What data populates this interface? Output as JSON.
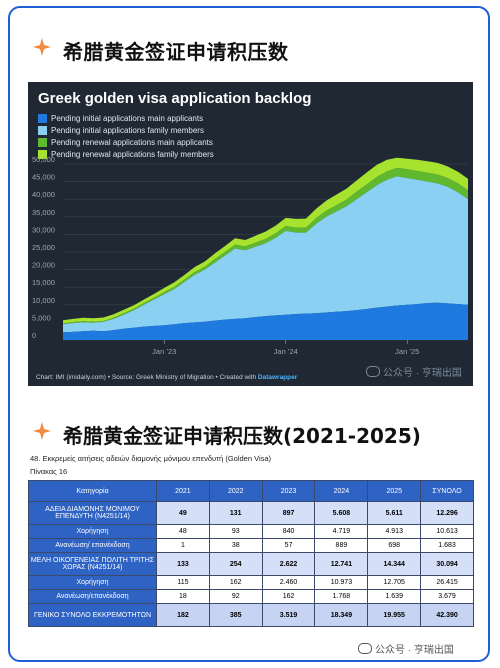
{
  "section1": {
    "title": "希腊黄金签证申请积压数"
  },
  "section2": {
    "title": "希腊黄金签证申请积压数(2021-2025)"
  },
  "chart_data": {
    "type": "area",
    "title": "Greek golden visa application backlog",
    "series": [
      {
        "name": "Pending initial applications main applicants",
        "color": "#1f7ae0"
      },
      {
        "name": "Pending initial applications family members",
        "color": "#8ad0f3"
      },
      {
        "name": "Pending renewal applications main applicants",
        "color": "#5fb82d"
      },
      {
        "name": "Pending renewal applications family members",
        "color": "#a6e22e"
      }
    ],
    "y_ticks": [
      "50,000",
      "45,000",
      "40,000",
      "35,000",
      "30,000",
      "25,000",
      "20,000",
      "15,000",
      "10,000",
      "5,000",
      "0"
    ],
    "ylim": [
      0,
      50000
    ],
    "x_ticks": [
      "Jan ’23",
      "Jan ’24",
      "Jan ’25"
    ],
    "x_months": [
      0,
      1,
      2,
      3,
      4,
      5,
      6,
      7,
      8,
      9,
      10,
      11,
      12,
      13,
      14,
      15,
      16,
      17,
      18,
      19,
      20,
      21,
      22,
      23,
      24,
      25,
      26,
      27,
      28,
      29,
      30,
      31,
      32,
      33,
      34,
      35,
      36,
      37,
      38,
      39,
      40
    ],
    "stack_main": [
      2200,
      2300,
      2500,
      2600,
      2500,
      2800,
      3200,
      3500,
      3800,
      4000,
      4200,
      4500,
      4800,
      5000,
      5200,
      5500,
      5800,
      6000,
      6200,
      6500,
      6800,
      7000,
      7200,
      7400,
      7500,
      7600,
      7800,
      8000,
      8200,
      8500,
      8800,
      9200,
      9500,
      9800,
      10000,
      10200,
      10500,
      10600,
      10400,
      10200,
      10000
    ],
    "stack_family": [
      4500,
      4800,
      5000,
      4900,
      5200,
      6000,
      7200,
      8500,
      10000,
      11500,
      13000,
      14500,
      16500,
      18500,
      20000,
      22000,
      24000,
      26000,
      25500,
      26500,
      27500,
      29000,
      31000,
      30500,
      30500,
      33000,
      35000,
      36500,
      38000,
      40000,
      42000,
      44000,
      45500,
      46500,
      46000,
      45500,
      45000,
      44500,
      43500,
      42000,
      40000
    ],
    "stack_renew_main": [
      4700,
      5100,
      5300,
      5200,
      5400,
      6300,
      7600,
      8900,
      10500,
      12000,
      13600,
      15100,
      17200,
      19300,
      20800,
      23000,
      25000,
      27100,
      26600,
      27600,
      28700,
      30300,
      32400,
      31900,
      31900,
      34600,
      36700,
      38300,
      39900,
      42100,
      44200,
      46300,
      47900,
      48900,
      48500,
      48000,
      47500,
      47000,
      46000,
      44500,
      42500
    ],
    "stack_renew_family": [
      5600,
      6000,
      6300,
      6200,
      6400,
      7300,
      8600,
      9900,
      11500,
      13100,
      14800,
      16400,
      18500,
      20700,
      22300,
      24600,
      26700,
      28900,
      28400,
      29600,
      30800,
      32500,
      34700,
      34400,
      34500,
      37300,
      39600,
      41300,
      43000,
      45300,
      47600,
      49800,
      51200,
      51800,
      51500,
      51200,
      50800,
      50300,
      49300,
      47800,
      45800
    ],
    "credits": {
      "text": "Chart: IMI (imidaily.com) • Source: Greek Ministry of Migration • Created with ",
      "tool": "Datawrapper"
    }
  },
  "watermark": "公众号 · 亨瑞出国",
  "table": {
    "caption": "48. Εκκρεμείς αιτήσεις αδειών διαμονής μόνιμου επενδυτή (Golden Visa)",
    "subcaption": "Πίνακας 16",
    "headers": [
      "Κατηγορία",
      "2021",
      "2022",
      "2023",
      "2024",
      "2025",
      "ΣΥΝΟΛΟ"
    ],
    "rows": [
      {
        "kind": "main",
        "cells": [
          "ΑΔΕΙΑ ΔΙΑΜΟΝΗΣ ΜΟΝΙΜΟΥ ΕΠΕΝΔΥΤΗ (Ν4251/14)",
          "49",
          "131",
          "897",
          "5.608",
          "5.611",
          "12.296"
        ]
      },
      {
        "kind": "sub",
        "cells": [
          "Χορήγηση",
          "48",
          "93",
          "840",
          "4.719",
          "4.913",
          "10.613"
        ]
      },
      {
        "kind": "sub",
        "cells": [
          "Ανανέωση/ επανέκδοση",
          "1",
          "38",
          "57",
          "889",
          "698",
          "1.683"
        ]
      },
      {
        "kind": "main",
        "cells": [
          "ΜΕΛΗ ΟΙΚΟΓΕΝΕΙΑΣ ΠΟΛΙΤΗ ΤΡΙΤΗΣ ΧΩΡΑΣ (Ν4251/14)",
          "133",
          "254",
          "2.622",
          "12.741",
          "14.344",
          "30.094"
        ]
      },
      {
        "kind": "sub",
        "cells": [
          "Χορήγηση",
          "115",
          "162",
          "2.460",
          "10.973",
          "12.705",
          "26.415"
        ]
      },
      {
        "kind": "sub",
        "cells": [
          "Ανανέωση/επανέκδοση",
          "18",
          "92",
          "162",
          "1.768",
          "1.639",
          "3.679"
        ]
      },
      {
        "kind": "total",
        "cells": [
          "ΓΕΝΙΚΟ ΣΥΝΟΛΟ ΕΚΚΡΕΜΟΤΗΤΩΝ",
          "182",
          "385",
          "3.519",
          "18.349",
          "19.955",
          "42.390"
        ]
      }
    ]
  }
}
